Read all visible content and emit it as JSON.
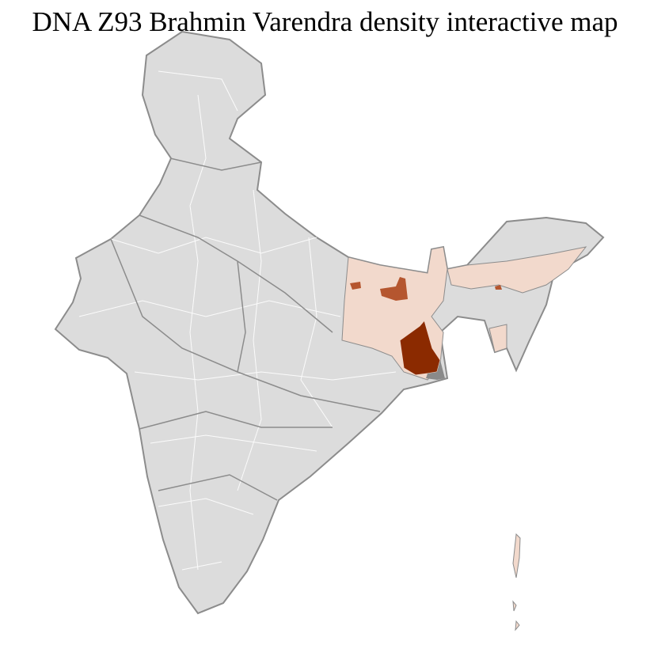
{
  "title": "DNA Z93 Brahmin Varendra density interactive map",
  "colors": {
    "no_data": "#dcdcdc",
    "border": "#8c8c8c",
    "district_border": "#ffffff",
    "low_density": "#f2d9cc",
    "medium_density": "#b5562f",
    "high_density": "#8b2a00",
    "dark_grey_region": "#8a8a8a"
  }
}
